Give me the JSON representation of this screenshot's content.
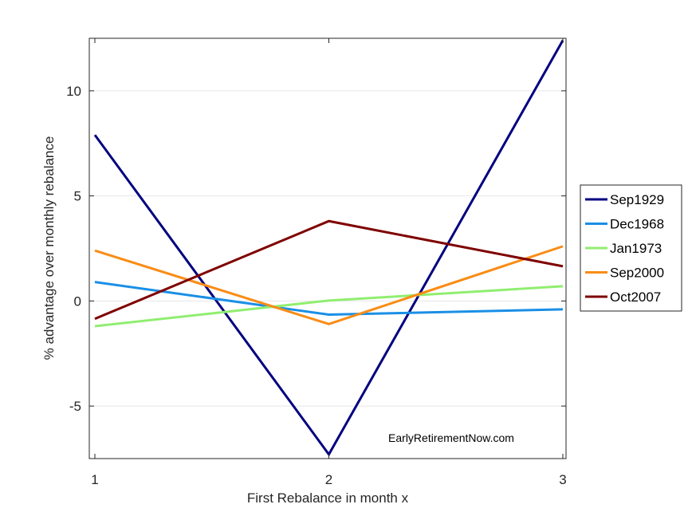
{
  "chart_data": {
    "type": "line",
    "xlabel": "First Rebalance in month x",
    "ylabel": "% advantage over monthly rebalance",
    "x": [
      1,
      2,
      3
    ],
    "x_ticks": [
      "1",
      "2",
      "3"
    ],
    "xlim": [
      1,
      3
    ],
    "y_ticks": [
      "-5",
      "0",
      "5",
      "10"
    ],
    "y_tick_values": [
      -5,
      0,
      5,
      10
    ],
    "ylim": [
      -7.5,
      12.5
    ],
    "grid": "horizontal",
    "legend_position": "outside-right",
    "annotation": "EarlyRetirementNow.com",
    "series": [
      {
        "name": "Sep1929",
        "color": "#00007f",
        "values": [
          7.9,
          -7.3,
          12.4
        ]
      },
      {
        "name": "Dec1968",
        "color": "#1a8fe6",
        "values": [
          0.9,
          -0.65,
          -0.4
        ]
      },
      {
        "name": "Jan1973",
        "color": "#90ee70",
        "values": [
          -1.2,
          0.02,
          0.7
        ]
      },
      {
        "name": "Sep2000",
        "color": "#f98c15",
        "values": [
          2.4,
          -1.1,
          2.6
        ]
      },
      {
        "name": "Oct2007",
        "color": "#7f0000",
        "values": [
          -0.85,
          3.8,
          1.65
        ]
      }
    ]
  }
}
